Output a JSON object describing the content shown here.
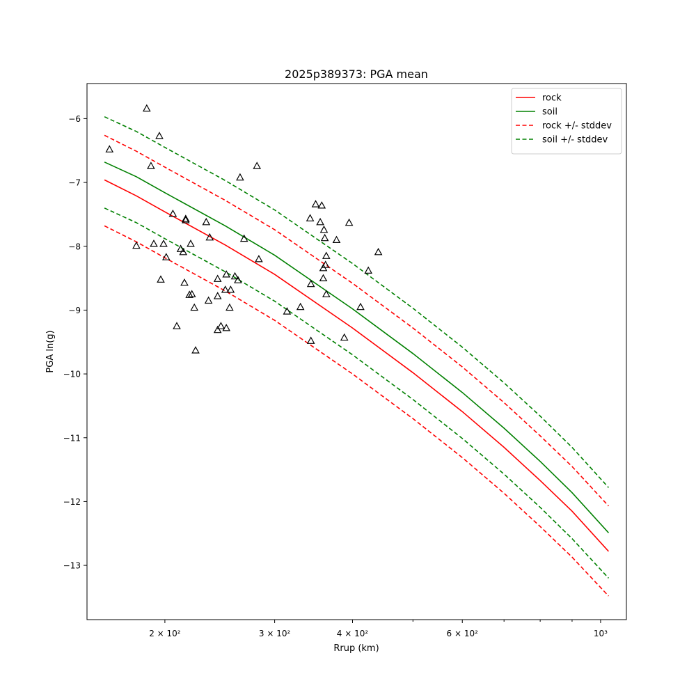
{
  "chart_data": {
    "type": "line",
    "title": "2025p389373: PGA mean",
    "xlabel": "Rrup (km)",
    "ylabel": "PGA ln(g)",
    "xscale": "log",
    "xlim": [
      150,
      1100
    ],
    "ylim": [
      -13.85,
      -5.45
    ],
    "x_ticks": [
      {
        "value": 200,
        "label": "2 × 10²"
      },
      {
        "value": 300,
        "label": "3 × 10²"
      },
      {
        "value": 400,
        "label": "4 × 10²"
      },
      {
        "value": 600,
        "label": "6 × 10²"
      },
      {
        "value": 1000,
        "label": "10³"
      }
    ],
    "x_minor_ticks": [
      500,
      700,
      800,
      900
    ],
    "y_ticks": [
      {
        "value": -6,
        "label": "−6"
      },
      {
        "value": -7,
        "label": "−7"
      },
      {
        "value": -8,
        "label": "−8"
      },
      {
        "value": -9,
        "label": "−9"
      },
      {
        "value": -10,
        "label": "−10"
      },
      {
        "value": -11,
        "label": "−11"
      },
      {
        "value": -12,
        "label": "−12"
      },
      {
        "value": -13,
        "label": "−13"
      }
    ],
    "grid": false,
    "legend": "top-right",
    "x": [
      160,
      180,
      200,
      250,
      300,
      400,
      500,
      600,
      700,
      800,
      900,
      1030
    ],
    "series": [
      {
        "name": "rock",
        "color": "#ff0000",
        "style": "solid",
        "values": [
          -6.96,
          -7.21,
          -7.46,
          -7.98,
          -8.44,
          -9.28,
          -9.98,
          -10.59,
          -11.15,
          -11.67,
          -12.15,
          -12.78
        ]
      },
      {
        "name": "soil",
        "color": "#008000",
        "style": "solid",
        "values": [
          -6.68,
          -6.91,
          -7.16,
          -7.68,
          -8.14,
          -8.98,
          -9.68,
          -10.29,
          -10.85,
          -11.37,
          -11.86,
          -12.49
        ]
      },
      {
        "name": "rock +/- stddev",
        "color": "#ff0000",
        "style": "dashed",
        "values": [
          -6.26,
          -6.51,
          -6.76,
          -7.28,
          -7.74,
          -8.58,
          -9.28,
          -9.89,
          -10.45,
          -10.97,
          -11.45,
          -12.07
        ]
      },
      {
        "name": "rock +/- stddev",
        "color": "#ff0000",
        "style": "dashed",
        "legend": false,
        "values": [
          -7.68,
          -7.93,
          -8.18,
          -8.7,
          -9.16,
          -10.0,
          -10.7,
          -11.31,
          -11.87,
          -12.39,
          -12.87,
          -13.48
        ]
      },
      {
        "name": "soil +/- stddev",
        "color": "#008000",
        "style": "dashed",
        "values": [
          -5.97,
          -6.2,
          -6.45,
          -6.97,
          -7.43,
          -8.27,
          -8.97,
          -9.58,
          -10.14,
          -10.66,
          -11.15,
          -11.78
        ]
      },
      {
        "name": "soil +/- stddev",
        "color": "#008000",
        "style": "dashed",
        "legend": false,
        "values": [
          -7.4,
          -7.63,
          -7.88,
          -8.4,
          -8.86,
          -9.7,
          -10.4,
          -11.01,
          -11.57,
          -12.09,
          -12.58,
          -13.2
        ]
      }
    ],
    "observations": {
      "marker": "triangle",
      "color": "#000000",
      "points": [
        [
          163,
          -6.48
        ],
        [
          180,
          -7.99
        ],
        [
          187,
          -5.84
        ],
        [
          190,
          -6.74
        ],
        [
          192,
          -7.96
        ],
        [
          196,
          -6.27
        ],
        [
          197,
          -8.52
        ],
        [
          199,
          -7.96
        ],
        [
          201,
          -8.17
        ],
        [
          206,
          -7.49
        ],
        [
          209,
          -9.25
        ],
        [
          212,
          -8.04
        ],
        [
          214,
          -8.09
        ],
        [
          215,
          -8.57
        ],
        [
          216,
          -7.59
        ],
        [
          216,
          -7.57
        ],
        [
          219,
          -8.76
        ],
        [
          220,
          -7.96
        ],
        [
          221,
          -8.75
        ],
        [
          223,
          -8.96
        ],
        [
          224,
          -9.63
        ],
        [
          233,
          -7.62
        ],
        [
          235,
          -8.85
        ],
        [
          236,
          -7.86
        ],
        [
          243,
          -9.31
        ],
        [
          243,
          -8.51
        ],
        [
          243,
          -8.78
        ],
        [
          246,
          -9.25
        ],
        [
          250,
          -8.68
        ],
        [
          251,
          -8.44
        ],
        [
          251,
          -9.28
        ],
        [
          254,
          -8.96
        ],
        [
          255,
          -8.68
        ],
        [
          259,
          -8.47
        ],
        [
          262,
          -8.53
        ],
        [
          264,
          -6.92
        ],
        [
          268,
          -7.88
        ],
        [
          281,
          -6.74
        ],
        [
          283,
          -8.2
        ],
        [
          314,
          -9.02
        ],
        [
          330,
          -8.95
        ],
        [
          342,
          -7.56
        ],
        [
          343,
          -8.59
        ],
        [
          343,
          -9.48
        ],
        [
          349,
          -7.34
        ],
        [
          355,
          -7.62
        ],
        [
          357,
          -7.36
        ],
        [
          359,
          -8.34
        ],
        [
          359,
          -8.5
        ],
        [
          360,
          -7.74
        ],
        [
          361,
          -7.87
        ],
        [
          362,
          -8.29
        ],
        [
          363,
          -8.15
        ],
        [
          363,
          -8.75
        ],
        [
          377,
          -7.9
        ],
        [
          388,
          -9.43
        ],
        [
          395,
          -7.63
        ],
        [
          412,
          -8.95
        ],
        [
          424,
          -8.38
        ],
        [
          440,
          -8.09
        ]
      ]
    }
  }
}
